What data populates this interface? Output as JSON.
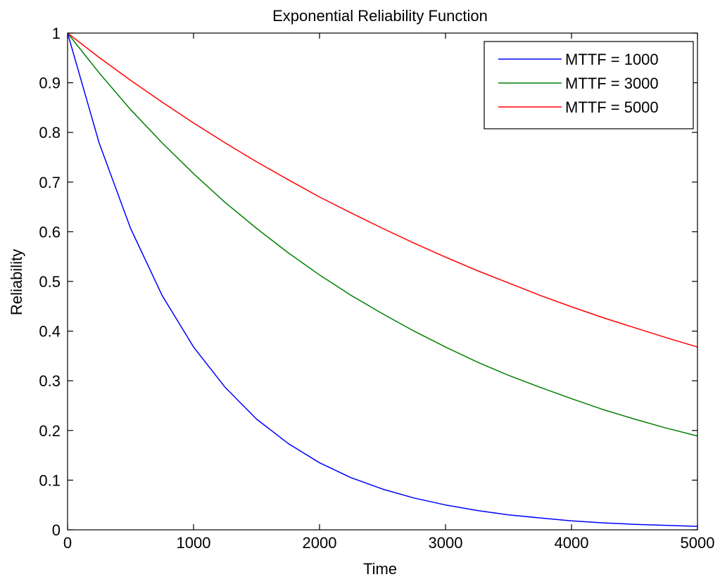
{
  "chart_data": {
    "type": "line",
    "title": "Exponential Reliability Function",
    "xlabel": "Time",
    "ylabel": "Reliability",
    "xlim": [
      0,
      5000
    ],
    "ylim": [
      0,
      1
    ],
    "xticks": [
      0,
      1000,
      2000,
      3000,
      4000,
      5000
    ],
    "xtick_labels": [
      "0",
      "1000",
      "2000",
      "3000",
      "4000",
      "5000"
    ],
    "yticks": [
      0,
      0.1,
      0.2,
      0.3,
      0.4,
      0.5,
      0.6,
      0.7,
      0.8,
      0.9,
      1
    ],
    "ytick_labels": [
      "0",
      "0.1",
      "0.2",
      "0.3",
      "0.4",
      "0.5",
      "0.6",
      "0.7",
      "0.8",
      "0.9",
      "1"
    ],
    "grid": false,
    "legend_position": "top-right",
    "x": [
      0,
      250,
      500,
      750,
      1000,
      1250,
      1500,
      1750,
      2000,
      2250,
      2500,
      2750,
      3000,
      3250,
      3500,
      3750,
      4000,
      4250,
      4500,
      4750,
      5000
    ],
    "series": [
      {
        "name": "MTTF = 1000",
        "color": "#0000ff",
        "values": [
          1,
          0.779,
          0.607,
          0.472,
          0.368,
          0.287,
          0.223,
          0.174,
          0.135,
          0.105,
          0.082,
          0.064,
          0.05,
          0.039,
          0.03,
          0.024,
          0.018,
          0.014,
          0.011,
          0.009,
          0.007
        ]
      },
      {
        "name": "MTTF = 3000",
        "color": "#008000",
        "values": [
          1,
          0.92,
          0.846,
          0.779,
          0.717,
          0.659,
          0.607,
          0.558,
          0.513,
          0.472,
          0.435,
          0.4,
          0.368,
          0.338,
          0.311,
          0.287,
          0.264,
          0.242,
          0.223,
          0.205,
          0.189
        ]
      },
      {
        "name": "MTTF = 5000",
        "color": "#ff0000",
        "values": [
          1,
          0.951,
          0.905,
          0.861,
          0.819,
          0.779,
          0.741,
          0.705,
          0.67,
          0.638,
          0.607,
          0.577,
          0.549,
          0.522,
          0.497,
          0.472,
          0.449,
          0.427,
          0.407,
          0.387,
          0.368
        ]
      }
    ]
  }
}
